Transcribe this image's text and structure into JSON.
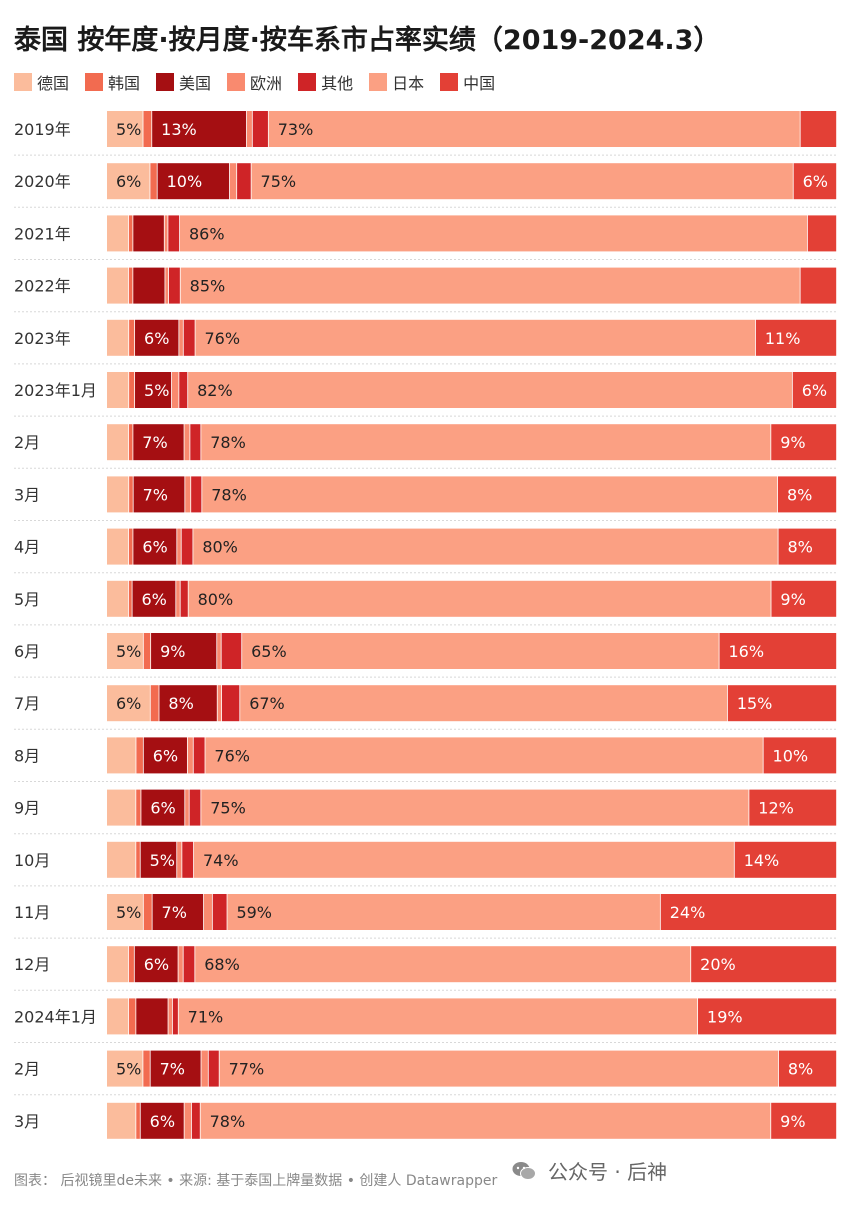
{
  "title": "泰国 按年度·按月度·按车系市占率实绩（2019-2024.3）",
  "footer": "图表： 后视镜里de未来 • 来源: 基于泰国上牌量数据 • 创建人 Datawrapper",
  "watermark": "公众号 · 后神",
  "colors": {
    "德国": "#fbbc9c",
    "韩国": "#f26b50",
    "美国": "#a50f12",
    "欧洲": "#f98a6f",
    "其他": "#cf2427",
    "日本": "#fba083",
    "中国": "#e34036"
  },
  "chart_data": {
    "type": "bar",
    "orientation": "horizontal",
    "stacked": true,
    "normalized": true,
    "title": "泰国 按年度·按月度·按车系市占率实绩（2019-2024.3）",
    "legend": [
      "德国",
      "韩国",
      "美国",
      "欧洲",
      "其他",
      "日本",
      "中国"
    ],
    "legend_placement": "top-left",
    "categories": [
      "2019年",
      "2020年",
      "2021年",
      "2022年",
      "2023年",
      "2023年1月",
      "2月",
      "3月",
      "4月",
      "5月",
      "6月",
      "7月",
      "8月",
      "9月",
      "10月",
      "11月",
      "12月",
      "2024年1月",
      "2月",
      "3月"
    ],
    "series": [
      {
        "name": "德国",
        "values": [
          5,
          6,
          3,
          3,
          3,
          3,
          3,
          3,
          3,
          3,
          5,
          6,
          4,
          4,
          4,
          5,
          3,
          3,
          5,
          4
        ]
      },
      {
        "name": "韩国",
        "values": [
          1.2,
          1,
          0.6,
          0.6,
          0.8,
          0.8,
          0.6,
          0.6,
          0.6,
          0.5,
          1,
          1.2,
          1,
          0.7,
          0.6,
          1.2,
          0.8,
          1,
          1,
          0.6
        ]
      },
      {
        "name": "美国",
        "values": [
          13,
          10,
          4.3,
          4.4,
          6,
          5,
          7,
          7,
          6,
          6,
          9,
          8,
          6,
          6,
          5,
          7,
          6,
          4.4,
          7,
          6
        ]
      },
      {
        "name": "欧洲",
        "values": [
          0.8,
          1,
          0.5,
          0.5,
          0.6,
          1,
          0.8,
          0.8,
          0.6,
          0.6,
          0.6,
          0.6,
          0.8,
          0.6,
          0.7,
          1.2,
          0.7,
          0.6,
          1,
          1
        ]
      },
      {
        "name": "其他",
        "values": [
          2.2,
          2,
          1.6,
          1.6,
          1.6,
          1.2,
          1.5,
          1.5,
          1.6,
          1.1,
          2.8,
          2.5,
          1.6,
          1.6,
          1.6,
          2,
          1.6,
          0.8,
          1.5,
          1.2
        ]
      },
      {
        "name": "日本",
        "values": [
          73,
          75,
          86,
          85,
          76,
          82,
          78,
          78,
          80,
          80,
          65,
          67,
          76,
          75,
          74,
          59,
          68,
          71,
          77,
          78
        ]
      },
      {
        "name": "中国",
        "values": [
          5,
          6,
          4,
          5,
          11,
          6,
          9,
          8,
          8,
          9,
          16,
          15,
          10,
          12,
          14,
          24,
          20,
          19,
          8,
          9
        ]
      }
    ],
    "labels": [
      {
        "德国": "5%",
        "美国": "13%",
        "日本": "73%"
      },
      {
        "德国": "6%",
        "美国": "10%",
        "日本": "75%",
        "中国": "6%"
      },
      {
        "日本": "86%"
      },
      {
        "日本": "85%"
      },
      {
        "美国": "6%",
        "日本": "76%",
        "中国": "11%"
      },
      {
        "美国": "5%",
        "日本": "82%",
        "中国": "6%"
      },
      {
        "美国": "7%",
        "日本": "78%",
        "中国": "9%"
      },
      {
        "美国": "7%",
        "日本": "78%",
        "中国": "8%"
      },
      {
        "美国": "6%",
        "日本": "80%",
        "中国": "8%"
      },
      {
        "美国": "6%",
        "日本": "80%",
        "中国": "9%"
      },
      {
        "德国": "5%",
        "美国": "9%",
        "日本": "65%",
        "中国": "16%"
      },
      {
        "德国": "6%",
        "美国": "8%",
        "日本": "67%",
        "中国": "15%"
      },
      {
        "美国": "6%",
        "日本": "76%",
        "中国": "10%"
      },
      {
        "美国": "6%",
        "日本": "75%",
        "中国": "12%"
      },
      {
        "美国": "5%",
        "日本": "74%",
        "中国": "14%"
      },
      {
        "德国": "5%",
        "美国": "7%",
        "日本": "59%",
        "中国": "24%"
      },
      {
        "美国": "6%",
        "日本": "68%",
        "中国": "20%"
      },
      {
        "日本": "71%",
        "中国": "19%"
      },
      {
        "德国": "5%",
        "美国": "7%",
        "日本": "77%",
        "中国": "8%"
      },
      {
        "美国": "6%",
        "日本": "78%",
        "中国": "9%"
      }
    ],
    "xlim": [
      0,
      100
    ],
    "grid": false
  }
}
